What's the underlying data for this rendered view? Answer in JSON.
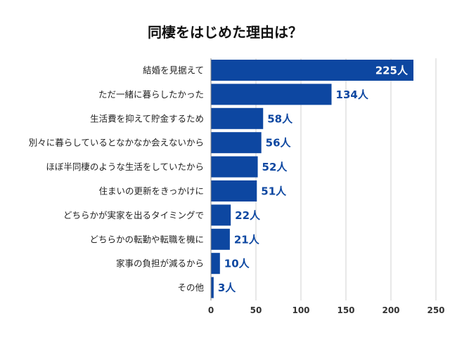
{
  "chart_data": {
    "type": "bar",
    "orientation": "horizontal",
    "title": "同棲をはじめた理由は？",
    "categories": [
      "結婚を見据えて",
      "ただ一緒に暮らしたかった",
      "生活費を抑えて貯金するため",
      "別々に暮らしているとなかなか会えないから",
      "ほぼ半同棲のような生活をしていたから",
      "住まいの更新をきっかけに",
      "どちらかが実家を出るタイミングで",
      "どちらかの転勤や転職を機に",
      "家事の負担が減るから",
      "その他"
    ],
    "values": [
      225,
      134,
      58,
      56,
      52,
      51,
      22,
      21,
      10,
      3
    ],
    "value_labels": [
      "225人",
      "134人",
      "58人",
      "56人",
      "52人",
      "51人",
      "22人",
      "21人",
      "10人",
      "3人"
    ],
    "xlim": [
      0,
      250
    ],
    "xticks": [
      "0",
      "50",
      "100",
      "150",
      "200",
      "250"
    ],
    "grid": true,
    "colors": {
      "bar": "#0d47a1",
      "label_outside": "#0d47a1",
      "label_inside": "#ffffff",
      "grid": "#d0d0d0"
    }
  }
}
